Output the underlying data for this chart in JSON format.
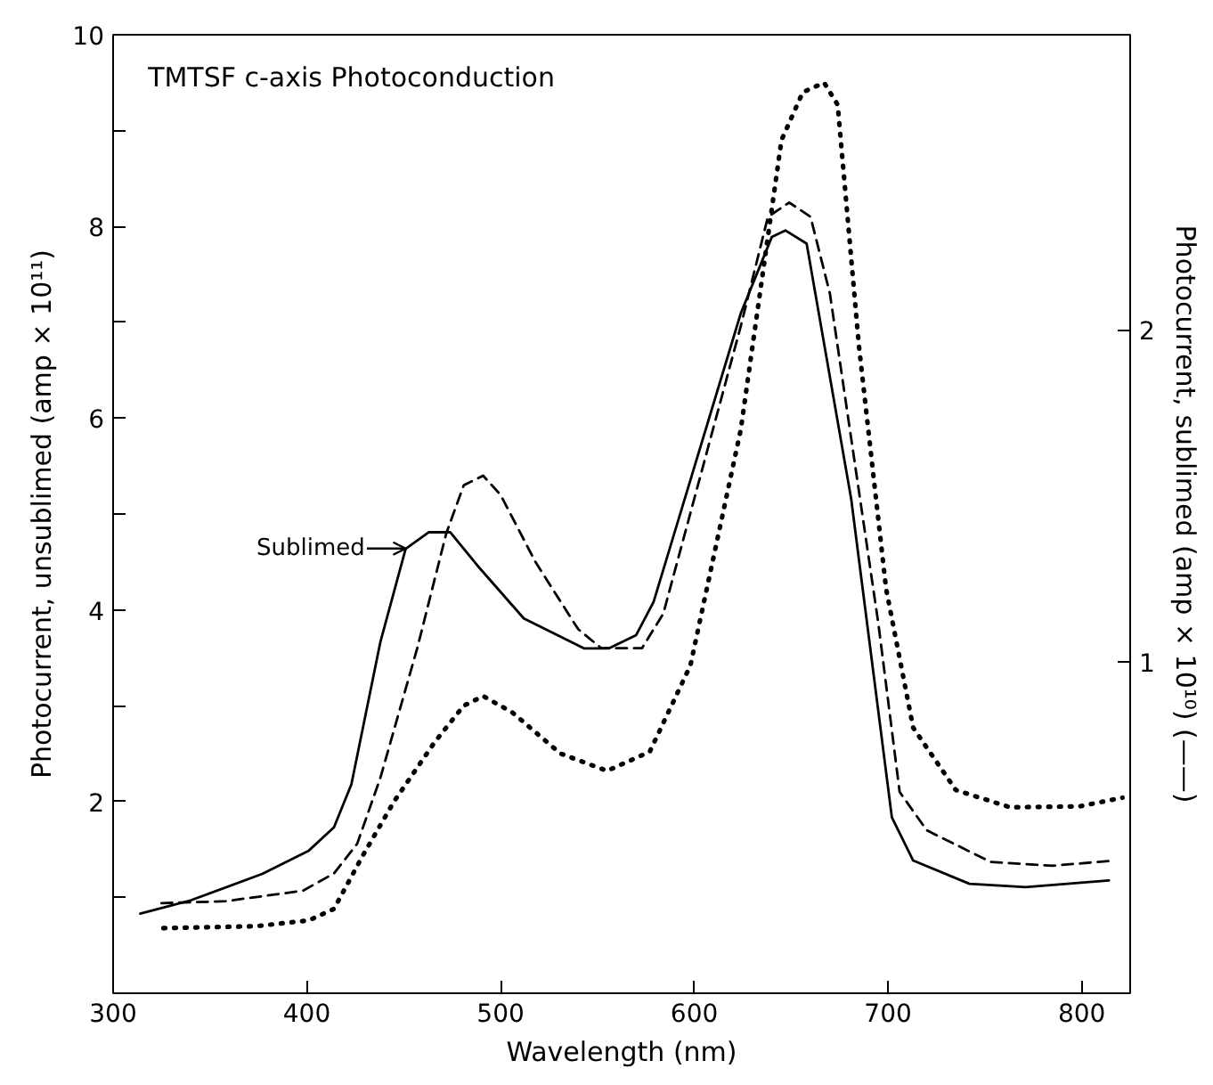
{
  "chart_data": {
    "type": "line",
    "title": "TMTSF c-axis Photoconduction",
    "xlabel": "Wavelength (nm)",
    "ylabel": "Photocurrent, unsublimed (amp × 10¹¹)",
    "y2label": "Photocurrent, sublimed (amp × 10¹⁰) (——)",
    "xlim": [
      300,
      825
    ],
    "xticks": [
      300,
      400,
      500,
      600,
      700,
      800
    ],
    "ylim": [
      0,
      10
    ],
    "yticks": [
      {
        "value": 1,
        "label": null
      },
      2,
      {
        "value": 3,
        "label": null
      },
      4,
      {
        "value": 5,
        "label": null
      },
      6,
      {
        "value": 7,
        "label": null
      },
      8,
      {
        "value": 9,
        "label": null
      },
      10
    ],
    "y2lim": [
      0,
      2.89
    ],
    "y2ticks": [
      1,
      2
    ],
    "grid": false,
    "marker": "none",
    "annotations": [
      {
        "text": "Sublimed",
        "x": 451,
        "y": 4.64
      }
    ],
    "series": [
      {
        "color": "#000000",
        "line_style": "solid",
        "axis": "y2",
        "x": [
          314,
          340,
          377,
          401,
          414,
          423,
          438,
          451,
          463,
          474,
          488,
          512,
          543,
          556,
          570,
          579,
          624,
          640,
          647,
          658,
          681,
          702,
          713,
          742,
          771,
          814
        ],
        "values": [
          0.24,
          0.28,
          0.36,
          0.43,
          0.5,
          0.63,
          1.06,
          1.34,
          1.39,
          1.39,
          1.29,
          1.13,
          1.04,
          1.04,
          1.08,
          1.18,
          2.05,
          2.28,
          2.3,
          2.26,
          1.49,
          0.53,
          0.4,
          0.33,
          0.32,
          0.34
        ]
      },
      {
        "color": "#000000",
        "line_style": "dashed",
        "x": [
          325,
          358,
          398,
          414,
          426,
          438,
          457,
          472,
          481,
          491,
          500,
          518,
          540,
          552,
          568,
          573,
          584,
          624,
          638,
          649,
          660,
          670,
          695,
          706,
          720,
          753,
          785,
          814
        ],
        "values": [
          0.94,
          0.96,
          1.07,
          1.25,
          1.56,
          2.25,
          3.6,
          4.8,
          5.3,
          5.4,
          5.2,
          4.5,
          3.8,
          3.6,
          3.6,
          3.6,
          3.96,
          6.96,
          8.1,
          8.25,
          8.1,
          7.3,
          3.86,
          2.1,
          1.7,
          1.37,
          1.33,
          1.38
        ]
      },
      {
        "color": "#000000",
        "line_style": "dotted",
        "x": [
          326,
          374,
          401,
          414,
          429,
          445,
          466,
          481,
          491,
          506,
          531,
          555,
          577,
          598,
          624,
          645,
          656,
          667,
          674,
          685,
          699,
          713,
          735,
          763,
          799,
          821
        ],
        "values": [
          0.68,
          0.7,
          0.76,
          0.88,
          1.44,
          2.0,
          2.62,
          3.0,
          3.1,
          2.93,
          2.5,
          2.32,
          2.52,
          3.42,
          5.88,
          8.9,
          9.4,
          9.5,
          9.27,
          6.75,
          4.22,
          2.77,
          2.12,
          1.94,
          1.95,
          2.04
        ]
      }
    ]
  }
}
